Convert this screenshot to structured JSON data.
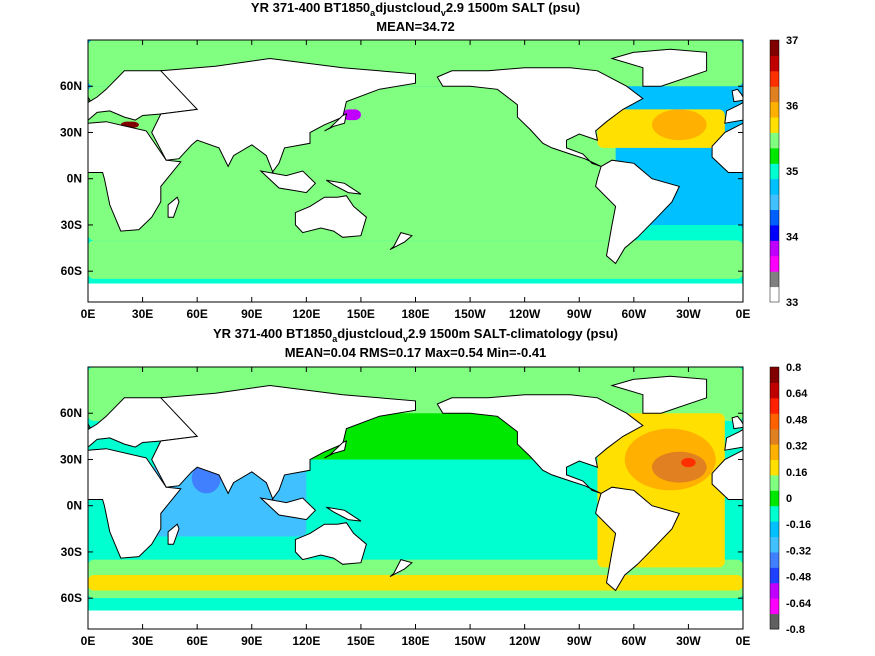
{
  "colors": {
    "ocean_top": "#00c0ff",
    "land": "#ffffff",
    "coast": "#000000",
    "green": "#00e800",
    "light_green": "#80ff80",
    "aqua": "#00ffd0",
    "light_blue": "#40c0ff",
    "yellow": "#ffe000",
    "orange": "#ffb000",
    "dark_orange": "#e08020",
    "red": "#ff3000",
    "purple": "#c000ff"
  },
  "chart_data": [
    {
      "type": "heatmap",
      "title": "YR 371-400 BT1850",
      "title_sub": "a",
      "title_mid": "djustcloud",
      "title_sub2": "v",
      "title_end": "2.9 1500m SALT (psu)",
      "stats": "MEAN=34.72",
      "x_ticks": [
        "0E",
        "30E",
        "60E",
        "90E",
        "120E",
        "150E",
        "180E",
        "150W",
        "120W",
        "90W",
        "60W",
        "30W",
        "0E"
      ],
      "y_ticks": [
        "60N",
        "30N",
        "0N",
        "30S",
        "60S"
      ],
      "y_values": [
        60,
        30,
        0,
        -30,
        -60
      ],
      "xlim": [
        0,
        360
      ],
      "ylim": [
        -80,
        90
      ],
      "colorbar_ticks": [
        "37",
        "36",
        "35",
        "34",
        "33"
      ],
      "colorbar_values": [
        37,
        36,
        35,
        34,
        33
      ],
      "colorbar_colors": [
        "#ffffff",
        "#808080",
        "#ff00ff",
        "#c000ff",
        "#0000ff",
        "#0060ff",
        "#40c0ff",
        "#00c0ff",
        "#00ffd0",
        "#00e800",
        "#80ff80",
        "#ffe000",
        "#ffb000",
        "#e08020",
        "#ff3000",
        "#c00000",
        "#800000"
      ],
      "mean": 34.72
    },
    {
      "type": "heatmap",
      "title": "YR 371-400 BT1850",
      "title_sub": "a",
      "title_mid": "djustcloud",
      "title_sub2": "v",
      "title_end": "2.9 1500m SALT-climatology (psu)",
      "stats": "MEAN=0.04   RMS=0.17   Max=0.54   Min=-0.41",
      "x_ticks": [
        "0E",
        "30E",
        "60E",
        "90E",
        "120E",
        "150E",
        "180E",
        "150W",
        "120W",
        "90W",
        "60W",
        "30W",
        "0E"
      ],
      "y_ticks": [
        "60N",
        "30N",
        "0N",
        "30S",
        "60S"
      ],
      "y_values": [
        60,
        30,
        0,
        -30,
        -60
      ],
      "xlim": [
        0,
        360
      ],
      "ylim": [
        -80,
        90
      ],
      "colorbar_ticks": [
        "0.8",
        "0.64",
        "0.48",
        "0.32",
        "0.16",
        "0",
        "-0.16",
        "-0.32",
        "-0.48",
        "-0.64",
        "-0.8"
      ],
      "colorbar_values": [
        0.8,
        0.64,
        0.48,
        0.32,
        0.16,
        0,
        -0.16,
        -0.32,
        -0.48,
        -0.64,
        -0.8
      ],
      "colorbar_colors": [
        "#606060",
        "#ff00ff",
        "#c000ff",
        "#2040ff",
        "#4080ff",
        "#40c0ff",
        "#00c0ff",
        "#00ffd0",
        "#00e800",
        "#80ff80",
        "#ffe000",
        "#ffb000",
        "#e08020",
        "#ff6000",
        "#ff2000",
        "#c00000",
        "#800000"
      ],
      "mean": 0.04,
      "rms": 0.17,
      "max": 0.54,
      "min": -0.41
    }
  ]
}
